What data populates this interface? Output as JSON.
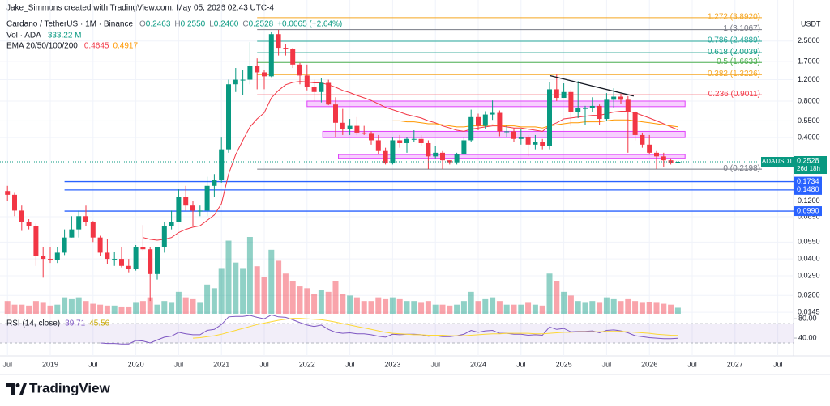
{
  "header": "Jake_Simmons created with TradingView.com, May 05, 2026 02:43 UTC-4",
  "footer": "TradingView",
  "chart_data": {
    "type": "candlestick",
    "symbol_title": "Cardano / TetherUS · 1M · Binance",
    "ohlc_letters": [
      "O",
      "H",
      "L",
      "C"
    ],
    "last_candle_labels": [
      "0.2463",
      "0.2550",
      "0.2460",
      "0.2528"
    ],
    "change_label": "+0.0065 (+2.64%)",
    "vol_title": "Vol · ADA",
    "vol_label": "333.22 M",
    "ema_title": "EMA 20/50/100/200",
    "unit": "USDT",
    "ticker": "ADAUSDT",
    "countdown": "26d 18h",
    "log_scale": true,
    "grid": true,
    "colors": {
      "up": "#089981",
      "down": "#f23645"
    },
    "ylim": [
      0.0141,
      4.82
    ],
    "yticks": [
      {
        "value": 2.5,
        "label": "2.5000"
      },
      {
        "value": 1.7,
        "label": "1.7000"
      },
      {
        "value": 1.2,
        "label": "1.2000"
      },
      {
        "value": 0.8,
        "label": "0.8000"
      },
      {
        "value": 0.55,
        "label": "0.5500"
      },
      {
        "value": 0.4,
        "label": "0.4000"
      },
      {
        "value": 0.12,
        "label": "0.1200"
      },
      {
        "value": 0.089,
        "label": "0.0890"
      },
      {
        "value": 0.055,
        "label": "0.0550"
      },
      {
        "value": 0.04,
        "label": "0.0400"
      },
      {
        "value": 0.029,
        "label": "0.0290"
      },
      {
        "value": 0.02,
        "label": "0.0200"
      },
      {
        "value": 0.0145,
        "label": "0.0145"
      }
    ],
    "xticks": [
      "Jul",
      "2019",
      "Jul",
      "2020",
      "Jul",
      "2021",
      "Jul",
      "2022",
      "Jul",
      "2023",
      "Jul",
      "2024",
      "Jul",
      "2025",
      "Jul",
      "2026",
      "Jul",
      "2027",
      "Jul"
    ],
    "candles": [
      [
        0.145,
        0.16,
        0.12,
        0.135
      ],
      [
        0.135,
        0.14,
        0.09,
        0.1
      ],
      [
        0.1,
        0.11,
        0.068,
        0.08
      ],
      [
        0.08,
        0.085,
        0.07,
        0.075
      ],
      [
        0.075,
        0.078,
        0.035,
        0.042
      ],
      [
        0.042,
        0.05,
        0.028,
        0.04
      ],
      [
        0.04,
        0.05,
        0.037,
        0.039
      ],
      [
        0.039,
        0.05,
        0.037,
        0.045
      ],
      [
        0.045,
        0.07,
        0.043,
        0.06
      ],
      [
        0.06,
        0.09,
        0.06,
        0.07
      ],
      [
        0.07,
        0.1,
        0.06,
        0.09
      ],
      [
        0.09,
        0.11,
        0.075,
        0.08
      ],
      [
        0.08,
        0.082,
        0.055,
        0.06
      ],
      [
        0.06,
        0.062,
        0.042,
        0.045
      ],
      [
        0.045,
        0.058,
        0.036,
        0.04
      ],
      [
        0.04,
        0.046,
        0.035,
        0.04
      ],
      [
        0.04,
        0.05,
        0.034,
        0.035
      ],
      [
        0.035,
        0.04,
        0.031,
        0.033
      ],
      [
        0.033,
        0.052,
        0.032,
        0.05
      ],
      [
        0.05,
        0.076,
        0.047,
        0.048
      ],
      [
        0.048,
        0.05,
        0.018,
        0.03
      ],
      [
        0.03,
        0.05,
        0.027,
        0.05
      ],
      [
        0.05,
        0.08,
        0.045,
        0.075
      ],
      [
        0.075,
        0.1,
        0.07,
        0.08
      ],
      [
        0.08,
        0.15,
        0.08,
        0.13
      ],
      [
        0.13,
        0.16,
        0.1,
        0.11
      ],
      [
        0.11,
        0.12,
        0.075,
        0.1
      ],
      [
        0.1,
        0.11,
        0.09,
        0.1
      ],
      [
        0.1,
        0.19,
        0.09,
        0.16
      ],
      [
        0.16,
        0.2,
        0.13,
        0.18
      ],
      [
        0.18,
        0.4,
        0.17,
        0.32
      ],
      [
        0.32,
        1.2,
        0.3,
        1.1
      ],
      [
        1.1,
        1.5,
        0.95,
        1.2
      ],
      [
        1.2,
        1.45,
        0.9,
        1.2
      ],
      [
        1.2,
        2.45,
        1.1,
        1.55
      ],
      [
        1.55,
        1.8,
        1.0,
        1.38
      ],
      [
        1.38,
        1.45,
        1.0,
        1.28
      ],
      [
        1.28,
        2.97,
        1.26,
        2.85
      ],
      [
        2.85,
        3.1,
        1.9,
        2.2
      ],
      [
        2.2,
        2.35,
        1.9,
        2.15
      ],
      [
        2.15,
        2.2,
        1.5,
        1.6
      ],
      [
        1.6,
        1.65,
        1.1,
        1.3
      ],
      [
        1.3,
        1.6,
        0.98,
        1.05
      ],
      [
        1.05,
        1.2,
        0.8,
        0.95
      ],
      [
        0.95,
        1.24,
        0.78,
        1.13
      ],
      [
        1.13,
        1.2,
        0.74,
        0.75
      ],
      [
        0.75,
        0.86,
        0.4,
        0.53
      ],
      [
        0.53,
        0.69,
        0.42,
        0.47
      ],
      [
        0.47,
        0.57,
        0.42,
        0.5
      ],
      [
        0.5,
        0.59,
        0.42,
        0.44
      ],
      [
        0.44,
        0.5,
        0.42,
        0.43
      ],
      [
        0.43,
        0.45,
        0.35,
        0.38
      ],
      [
        0.38,
        0.42,
        0.29,
        0.31
      ],
      [
        0.31,
        0.33,
        0.24,
        0.245
      ],
      [
        0.245,
        0.4,
        0.24,
        0.38
      ],
      [
        0.38,
        0.42,
        0.33,
        0.36
      ],
      [
        0.36,
        0.4,
        0.3,
        0.39
      ],
      [
        0.39,
        0.46,
        0.37,
        0.39
      ],
      [
        0.39,
        0.42,
        0.34,
        0.36
      ],
      [
        0.36,
        0.38,
        0.22,
        0.28
      ],
      [
        0.28,
        0.34,
        0.27,
        0.3
      ],
      [
        0.3,
        0.31,
        0.22,
        0.26
      ],
      [
        0.26,
        0.26,
        0.24,
        0.25
      ],
      [
        0.25,
        0.3,
        0.24,
        0.29
      ],
      [
        0.29,
        0.4,
        0.29,
        0.38
      ],
      [
        0.38,
        0.68,
        0.37,
        0.59
      ],
      [
        0.59,
        0.63,
        0.46,
        0.5
      ],
      [
        0.5,
        0.66,
        0.47,
        0.62
      ],
      [
        0.62,
        0.81,
        0.56,
        0.64
      ],
      [
        0.64,
        0.67,
        0.41,
        0.45
      ],
      [
        0.45,
        0.51,
        0.4,
        0.45
      ],
      [
        0.45,
        0.48,
        0.37,
        0.39
      ],
      [
        0.39,
        0.47,
        0.35,
        0.4
      ],
      [
        0.4,
        0.42,
        0.28,
        0.35
      ],
      [
        0.35,
        0.42,
        0.32,
        0.37
      ],
      [
        0.37,
        0.39,
        0.32,
        0.34
      ],
      [
        0.34,
        1.15,
        0.32,
        1.0
      ],
      [
        1.0,
        1.33,
        0.8,
        0.85
      ],
      [
        0.85,
        1.12,
        0.85,
        0.95
      ],
      [
        0.95,
        0.99,
        0.5,
        0.65
      ],
      [
        0.65,
        1.17,
        0.58,
        0.7
      ],
      [
        0.7,
        0.73,
        0.51,
        0.7
      ],
      [
        0.7,
        0.86,
        0.65,
        0.73
      ],
      [
        0.73,
        0.75,
        0.51,
        0.57
      ],
      [
        0.57,
        0.93,
        0.55,
        0.82
      ],
      [
        0.82,
        1.02,
        0.7,
        0.87
      ],
      [
        0.87,
        0.92,
        0.76,
        0.82
      ],
      [
        0.82,
        0.88,
        0.3,
        0.65
      ],
      [
        0.65,
        0.66,
        0.38,
        0.42
      ],
      [
        0.42,
        0.44,
        0.33,
        0.35
      ],
      [
        0.35,
        0.42,
        0.29,
        0.3
      ],
      [
        0.3,
        0.31,
        0.22,
        0.28
      ],
      [
        0.28,
        0.3,
        0.23,
        0.26
      ],
      [
        0.26,
        0.27,
        0.24,
        0.2463
      ],
      [
        0.2463,
        0.255,
        0.246,
        0.2528
      ]
    ],
    "volume": [
      700,
      500,
      500,
      450,
      700,
      600,
      450,
      500,
      900,
      800,
      900,
      700,
      550,
      500,
      450,
      450,
      400,
      400,
      600,
      700,
      900,
      500,
      700,
      600,
      1200,
      900,
      800,
      600,
      1600,
      1400,
      2500,
      4000,
      2800,
      2500,
      4200,
      2600,
      2000,
      3500,
      2900,
      2200,
      1800,
      1500,
      1400,
      1100,
      1300,
      1200,
      1800,
      1100,
      1000,
      900,
      700,
      700,
      900,
      800,
      900,
      800,
      700,
      700,
      600,
      700,
      500,
      500,
      450,
      500,
      700,
      1200,
      700,
      800,
      900,
      700,
      500,
      500,
      500,
      600,
      500,
      450,
      2200,
      1800,
      1200,
      1000,
      700,
      600,
      700,
      600,
      900,
      800,
      700,
      800,
      700,
      600,
      650,
      600,
      550,
      500,
      333.22
    ],
    "series": [
      {
        "name": "EMA 20",
        "color": "#f23645",
        "values": [
          null,
          null,
          null,
          null,
          null,
          null,
          null,
          null,
          null,
          null,
          null,
          null,
          null,
          null,
          null,
          null,
          null,
          null,
          null,
          0.06,
          0.058,
          0.057,
          0.058,
          0.06,
          0.066,
          0.07,
          0.073,
          0.075,
          0.083,
          0.092,
          0.114,
          0.2,
          0.29,
          0.38,
          0.49,
          0.57,
          0.64,
          0.85,
          0.98,
          1.09,
          1.14,
          1.16,
          1.15,
          1.13,
          1.13,
          1.09,
          1.04,
          0.98,
          0.94,
          0.89,
          0.85,
          0.81,
          0.76,
          0.71,
          0.68,
          0.65,
          0.62,
          0.6,
          0.58,
          0.55,
          0.53,
          0.5,
          0.48,
          0.46,
          0.45,
          0.47,
          0.48,
          0.49,
          0.5,
          0.5,
          0.49,
          0.48,
          0.48,
          0.47,
          0.46,
          0.45,
          0.5,
          0.53,
          0.57,
          0.58,
          0.59,
          0.6,
          0.61,
          0.61,
          0.63,
          0.65,
          0.66,
          0.66,
          0.64,
          0.61,
          0.58,
          0.55,
          0.52,
          0.49,
          0.4645
        ]
      },
      {
        "name": "EMA 50",
        "color": "#ff9800",
        "values": [
          null,
          null,
          null,
          null,
          null,
          null,
          null,
          null,
          null,
          null,
          null,
          null,
          null,
          null,
          null,
          null,
          null,
          null,
          null,
          null,
          null,
          null,
          null,
          null,
          null,
          null,
          null,
          null,
          null,
          null,
          null,
          null,
          null,
          null,
          null,
          null,
          null,
          null,
          null,
          null,
          null,
          null,
          null,
          null,
          null,
          null,
          null,
          null,
          null,
          null,
          null,
          null,
          null,
          null,
          0.55,
          0.55,
          0.54,
          0.54,
          0.53,
          0.52,
          0.52,
          0.51,
          0.5,
          0.49,
          0.49,
          0.5,
          0.5,
          0.5,
          0.51,
          0.5,
          0.5,
          0.5,
          0.49,
          0.49,
          0.49,
          0.48,
          0.5,
          0.51,
          0.52,
          0.53,
          0.53,
          0.54,
          0.54,
          0.54,
          0.55,
          0.56,
          0.56,
          0.56,
          0.55,
          0.54,
          0.53,
          0.52,
          0.51,
          0.5,
          0.4917
        ]
      }
    ],
    "fib": [
      {
        "label": "1.272 (3.8920)",
        "price": 3.892,
        "color": "#f5a623"
      },
      {
        "label": "1 (3.1067)",
        "price": 3.1067,
        "color": "#787b86"
      },
      {
        "label": "0.786 (2.4889)",
        "price": 2.4889,
        "color": "#26a69a"
      },
      {
        "label": "0.618 (2.0039)",
        "price": 2.0039,
        "color": "#089981"
      },
      {
        "label": "0.5 (1.6633)",
        "price": 1.6633,
        "color": "#4caf50"
      },
      {
        "label": "0.382 (1.3226)",
        "price": 1.3226,
        "color": "#f5a623"
      },
      {
        "label": "0.236 (0.9011)",
        "price": 0.9011,
        "color": "#f23645"
      },
      {
        "label": "0 (0.2198)",
        "price": 0.2198,
        "color": "#787b86"
      }
    ],
    "hlines": [
      0.1734,
      {
        "value": 0.148,
        "label": "0.1480"
      },
      {
        "value": 0.099,
        "label": "0.0990"
      }
    ],
    "hline_color": "#2962ff",
    "zones": [
      {
        "top": 0.8,
        "bottom": 0.72
      },
      {
        "top": 0.45,
        "bottom": 0.4
      },
      {
        "top": 0.29,
        "bottom": 0.27
      }
    ],
    "zone_color": "#e040fb",
    "trendline": [
      1.3,
      0.88
    ],
    "rsi": {
      "title": "RSI (14, close)",
      "color": "#7e57c2",
      "ma_color": "#fdd835",
      "ylim": [
        20,
        92
      ],
      "yticks": [
        {
          "value": 80,
          "label": "80.00"
        },
        {
          "value": 40,
          "label": "40.00"
        }
      ],
      "levels": [
        70,
        30
      ],
      "values": [
        null,
        null,
        null,
        null,
        null,
        null,
        null,
        null,
        null,
        null,
        null,
        null,
        null,
        30,
        29,
        29,
        28,
        28,
        35,
        34,
        30,
        36,
        42,
        44,
        52,
        49,
        47,
        47,
        56,
        58,
        68,
        84,
        85,
        85,
        87,
        83,
        80,
        88,
        84,
        83,
        78,
        72,
        67,
        64,
        67,
        58,
        52,
        50,
        51,
        49,
        49,
        47,
        44,
        42,
        48,
        47,
        48,
        48,
        47,
        44,
        45,
        43,
        43,
        45,
        48,
        56,
        52,
        55,
        56,
        50,
        50,
        48,
        48,
        46,
        47,
        46,
        63,
        58,
        60,
        53,
        54,
        54,
        55,
        51,
        56,
        57,
        55,
        51,
        45,
        43,
        41,
        40,
        39,
        39,
        39.71
      ],
      "ma": [
        null,
        null,
        null,
        null,
        null,
        null,
        null,
        null,
        null,
        null,
        null,
        null,
        null,
        null,
        null,
        null,
        null,
        null,
        null,
        null,
        null,
        null,
        null,
        null,
        null,
        null,
        40,
        41,
        43,
        45,
        48,
        52,
        56,
        60,
        64,
        68,
        71,
        74,
        77,
        79,
        81,
        81,
        80,
        79,
        78,
        76,
        73,
        70,
        67,
        64,
        61,
        58,
        55,
        52,
        50,
        49,
        48,
        47,
        47,
        46,
        46,
        46,
        45,
        45,
        45,
        46,
        47,
        48,
        49,
        49,
        50,
        50,
        50,
        50,
        49,
        49,
        50,
        51,
        52,
        52,
        53,
        53,
        53,
        53,
        54,
        54,
        54,
        53,
        52,
        51,
        50,
        48,
        47,
        46,
        45.56
      ]
    }
  }
}
